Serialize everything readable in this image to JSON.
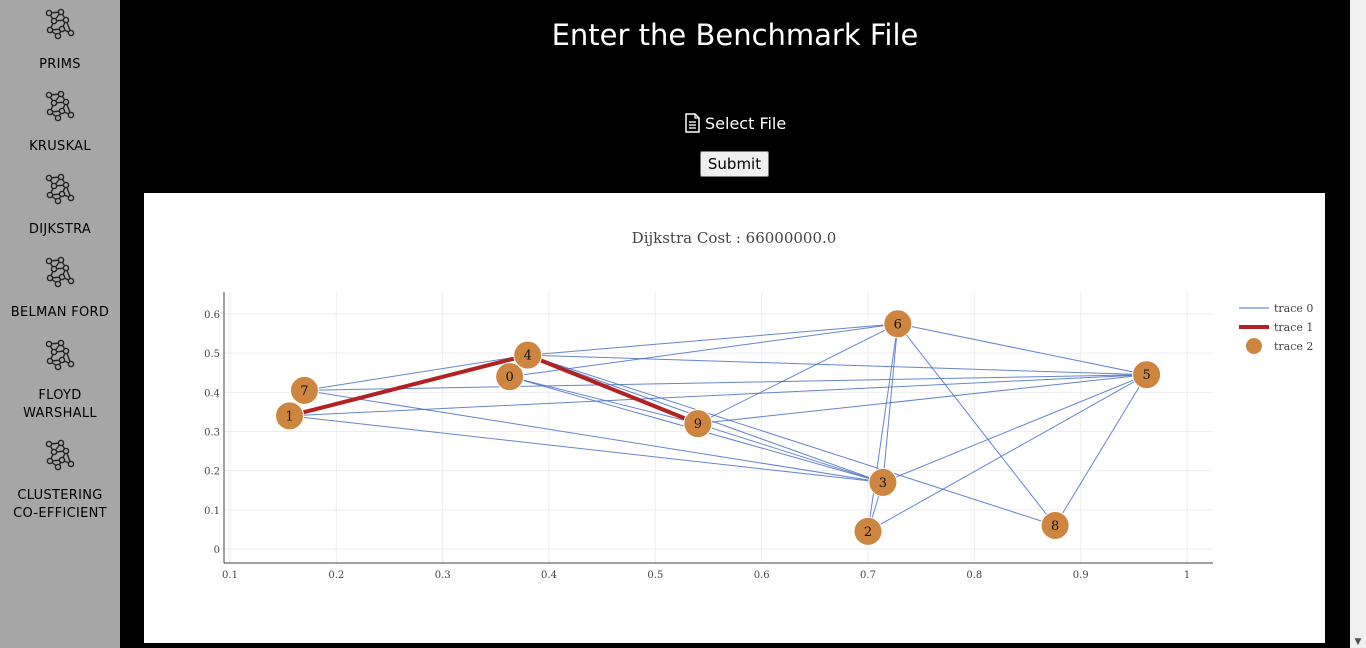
{
  "sidebar": {
    "items": [
      {
        "label": "PRIMS",
        "icon": "graph-network-icon"
      },
      {
        "label": "KRUSKAL",
        "icon": "graph-network-icon"
      },
      {
        "label": "DIJKSTRA",
        "icon": "graph-network-icon"
      },
      {
        "label": "BELMAN FORD",
        "icon": "graph-network-icon"
      },
      {
        "label": "FLOYD\nWARSHALL",
        "icon": "graph-network-icon"
      },
      {
        "label": "CLUSTERING\nCO-EFFICIENT",
        "icon": "graph-network-icon"
      }
    ]
  },
  "header": {
    "title": "Enter the Benchmark File",
    "select_file_label": "Select File",
    "submit_label": "Submit"
  },
  "colors": {
    "sidebar_bg": "#a6a6a6",
    "edge": "#4a6fc7",
    "path": "#b22222",
    "node": "#cd8540"
  },
  "chart_data": {
    "type": "scatter",
    "title": "Dijkstra Cost : 66000000.0",
    "xlim": [
      0.1,
      1.0
    ],
    "ylim": [
      0,
      0.6
    ],
    "x_ticks": [
      "0.1",
      "0.2",
      "0.3",
      "0.4",
      "0.5",
      "0.6",
      "0.7",
      "0.8",
      "0.9",
      "1"
    ],
    "y_ticks": [
      "0",
      "0.1",
      "0.2",
      "0.3",
      "0.4",
      "0.5",
      "0.6"
    ],
    "grid": true,
    "legend_placement": "top-right",
    "nodes": [
      {
        "id": "0",
        "x": 0.363,
        "y": 0.44
      },
      {
        "id": "1",
        "x": 0.156,
        "y": 0.34
      },
      {
        "id": "2",
        "x": 0.7,
        "y": 0.045
      },
      {
        "id": "3",
        "x": 0.714,
        "y": 0.17
      },
      {
        "id": "4",
        "x": 0.38,
        "y": 0.495
      },
      {
        "id": "5",
        "x": 0.962,
        "y": 0.445
      },
      {
        "id": "6",
        "x": 0.728,
        "y": 0.575
      },
      {
        "id": "7",
        "x": 0.17,
        "y": 0.405
      },
      {
        "id": "8",
        "x": 0.876,
        "y": 0.06
      },
      {
        "id": "9",
        "x": 0.54,
        "y": 0.32
      }
    ],
    "series": [
      {
        "name": "trace 0",
        "mode": "lines",
        "edges": [
          [
            "0",
            "6"
          ],
          [
            "0",
            "3"
          ],
          [
            "1",
            "5"
          ],
          [
            "1",
            "3"
          ],
          [
            "7",
            "5"
          ],
          [
            "7",
            "3"
          ],
          [
            "4",
            "6"
          ],
          [
            "4",
            "5"
          ],
          [
            "4",
            "3"
          ],
          [
            "4",
            "8"
          ],
          [
            "9",
            "3"
          ],
          [
            "9",
            "6"
          ],
          [
            "9",
            "5"
          ],
          [
            "6",
            "3"
          ],
          [
            "6",
            "2"
          ],
          [
            "6",
            "8"
          ],
          [
            "6",
            "5"
          ],
          [
            "2",
            "3"
          ],
          [
            "2",
            "5"
          ],
          [
            "8",
            "5"
          ],
          [
            "3",
            "5"
          ],
          [
            "7",
            "4"
          ],
          [
            "0",
            "9"
          ]
        ]
      },
      {
        "name": "trace 1",
        "mode": "lines",
        "path": [
          "1",
          "4",
          "9"
        ]
      },
      {
        "name": "trace 2",
        "mode": "markers"
      }
    ]
  }
}
